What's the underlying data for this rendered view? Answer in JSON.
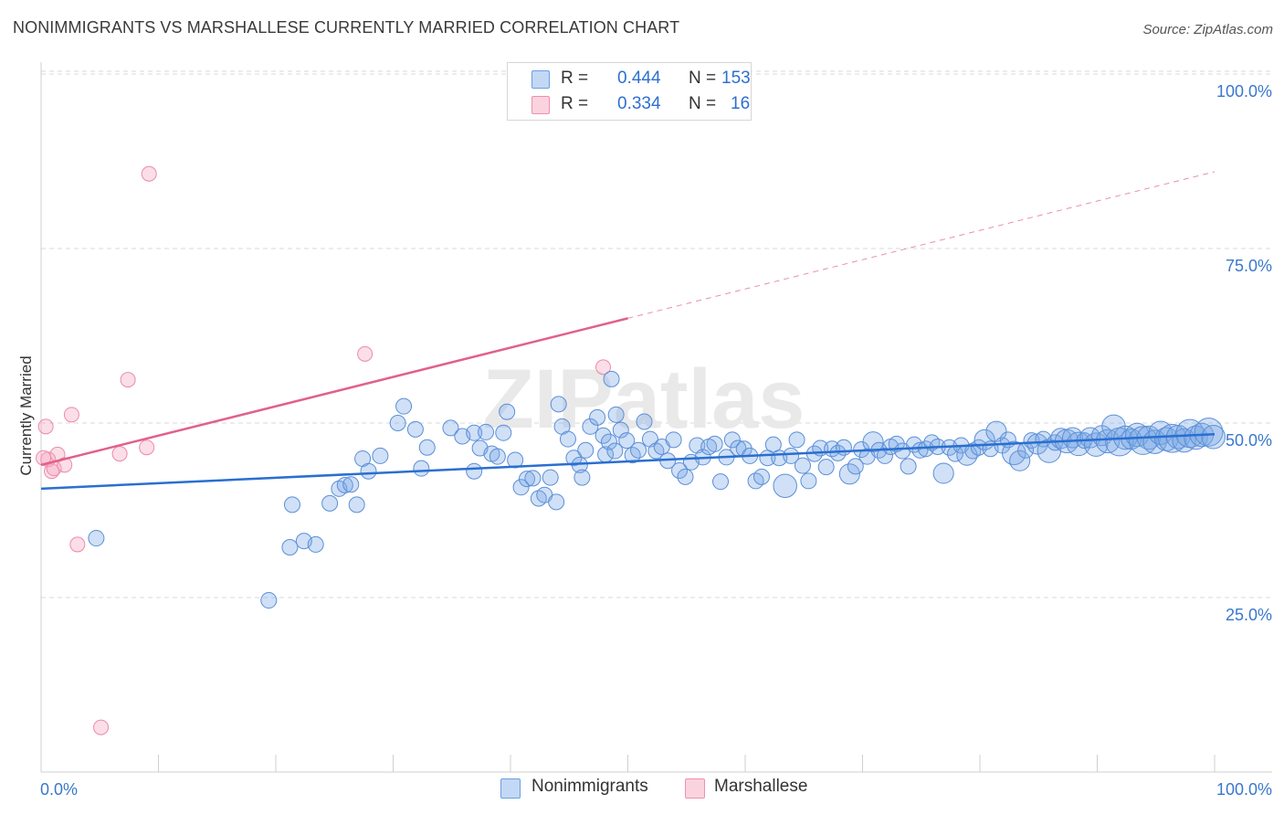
{
  "header": {
    "title": "NONIMMIGRANTS VS MARSHALLESE CURRENTLY MARRIED CORRELATION CHART",
    "source": "Source: ZipAtlas.com"
  },
  "watermark": "ZIPatlas",
  "legend": {
    "r_label": "R =",
    "n_label": "N =",
    "rows": [
      {
        "r": "0.444",
        "n": "153",
        "color": "#a8c8f0",
        "border": "#6a9fe0"
      },
      {
        "r": "0.334",
        "n": "16",
        "color": "#f8c0d0",
        "border": "#f090ae"
      }
    ]
  },
  "bottom_legend": [
    {
      "label": "Nonimmigrants",
      "color": "#a8c8f0",
      "border": "#6a9fe0"
    },
    {
      "label": "Marshallese",
      "color": "#f8c0d0",
      "border": "#f090ae"
    }
  ],
  "colors": {
    "blue_fill": "rgba(120,165,230,0.35)",
    "blue_stroke": "#5b8fd8",
    "blue_line": "#2a6fd0",
    "pink_fill": "rgba(245,160,190,0.35)",
    "pink_stroke": "#ec8aa8",
    "pink_line": "#e2608a",
    "tick_label": "#3a78cc",
    "grid": "#d8d8d8"
  },
  "chart_data": {
    "type": "scatter",
    "title": "NONIMMIGRANTS VS MARSHALLESE CURRENTLY MARRIED CORRELATION CHART",
    "xlabel": "",
    "ylabel": "Currently Married",
    "xlim": [
      0,
      100
    ],
    "ylim": [
      0,
      105
    ],
    "x_tick_labels": [
      "0.0%",
      "100.0%"
    ],
    "y_ticks": [
      25,
      50,
      75,
      100
    ],
    "y_tick_labels": [
      "25.0%",
      "50.0%",
      "75.0%",
      "100.0%"
    ],
    "grid": "dashed horizontal",
    "legend_placement": "top-center",
    "series": [
      {
        "name": "Nonimmigrants",
        "R": 0.444,
        "N": 153,
        "trend": {
          "x": [
            0,
            100
          ],
          "y": [
            40.6,
            48.4
          ]
        },
        "points": [
          [
            4.7,
            33.5,
            1
          ],
          [
            19.4,
            24.6,
            1
          ],
          [
            21.4,
            38.3,
            1
          ],
          [
            21.2,
            32.2,
            1
          ],
          [
            22.4,
            33.1,
            1
          ],
          [
            23.4,
            32.6,
            1
          ],
          [
            24.6,
            38.5,
            1
          ],
          [
            25.4,
            40.6,
            1
          ],
          [
            25.9,
            41.1,
            1
          ],
          [
            26.4,
            41.2,
            1
          ],
          [
            26.9,
            38.3,
            1
          ],
          [
            27.4,
            44.9,
            1
          ],
          [
            27.9,
            43.1,
            1
          ],
          [
            28.9,
            45.3,
            1
          ],
          [
            30.4,
            50.0,
            1
          ],
          [
            30.9,
            52.4,
            1
          ],
          [
            31.9,
            49.1,
            1
          ],
          [
            32.4,
            43.5,
            1
          ],
          [
            32.9,
            46.5,
            1
          ],
          [
            34.9,
            49.3,
            1
          ],
          [
            35.9,
            48.1,
            1
          ],
          [
            36.9,
            48.6,
            1
          ],
          [
            36.9,
            43.1,
            1
          ],
          [
            37.4,
            46.4,
            1
          ],
          [
            37.9,
            48.7,
            1
          ],
          [
            38.4,
            45.6,
            1
          ],
          [
            39.4,
            48.6,
            1
          ],
          [
            39.7,
            51.6,
            1
          ],
          [
            40.4,
            44.7,
            1
          ],
          [
            40.9,
            40.8,
            1
          ],
          [
            41.4,
            42.0,
            1
          ],
          [
            41.9,
            42.1,
            1
          ],
          [
            42.4,
            39.2,
            1
          ],
          [
            42.9,
            39.7,
            1
          ],
          [
            43.4,
            42.2,
            1
          ],
          [
            43.9,
            38.7,
            1
          ],
          [
            44.1,
            52.7,
            1
          ],
          [
            44.4,
            49.5,
            1
          ],
          [
            44.9,
            47.7,
            1
          ],
          [
            45.4,
            45.0,
            1
          ],
          [
            45.9,
            44.0,
            1
          ],
          [
            46.1,
            42.2,
            1
          ],
          [
            46.4,
            46.1,
            1
          ],
          [
            46.8,
            49.5,
            1
          ],
          [
            47.4,
            50.8,
            1
          ],
          [
            47.9,
            48.2,
            1
          ],
          [
            48.1,
            45.5,
            1
          ],
          [
            48.4,
            47.3,
            1
          ],
          [
            48.6,
            56.3,
            1
          ],
          [
            49.0,
            51.2,
            1
          ],
          [
            49.4,
            49.0,
            1
          ],
          [
            49.9,
            47.5,
            1
          ],
          [
            50.4,
            45.4,
            1
          ],
          [
            50.9,
            46.1,
            1
          ],
          [
            51.4,
            50.2,
            1
          ],
          [
            51.9,
            47.7,
            1
          ],
          [
            52.4,
            46.0,
            1
          ],
          [
            52.9,
            46.6,
            1
          ],
          [
            53.4,
            44.6,
            1
          ],
          [
            53.9,
            47.6,
            1
          ],
          [
            54.4,
            43.2,
            1
          ],
          [
            54.9,
            42.3,
            1
          ],
          [
            55.4,
            44.4,
            1
          ],
          [
            55.9,
            46.8,
            1
          ],
          [
            56.4,
            45.1,
            1
          ],
          [
            56.9,
            46.6,
            1
          ],
          [
            57.4,
            47.0,
            1
          ],
          [
            57.9,
            41.6,
            1
          ],
          [
            58.4,
            45.1,
            1
          ],
          [
            58.9,
            47.6,
            1
          ],
          [
            59.4,
            46.4,
            1
          ],
          [
            59.9,
            46.3,
            1
          ],
          [
            60.4,
            45.3,
            1
          ],
          [
            60.9,
            41.7,
            1
          ],
          [
            61.4,
            42.3,
            1
          ],
          [
            61.9,
            45.0,
            1
          ],
          [
            62.4,
            46.9,
            1
          ],
          [
            62.9,
            45.0,
            1
          ],
          [
            63.4,
            41.0,
            1.5
          ],
          [
            63.9,
            45.3,
            1
          ],
          [
            64.4,
            47.6,
            1
          ],
          [
            64.9,
            43.9,
            1
          ],
          [
            65.4,
            41.7,
            1
          ],
          [
            65.9,
            45.6,
            1
          ],
          [
            66.4,
            46.4,
            1
          ],
          [
            66.9,
            43.7,
            1
          ],
          [
            67.4,
            46.3,
            1
          ],
          [
            67.9,
            45.7,
            1
          ],
          [
            68.4,
            46.5,
            1
          ],
          [
            68.9,
            42.7,
            1.3
          ],
          [
            69.4,
            43.8,
            1
          ],
          [
            69.9,
            46.2,
            1
          ],
          [
            70.4,
            45.2,
            1
          ],
          [
            70.9,
            47.3,
            1.3
          ],
          [
            71.4,
            46.1,
            1
          ],
          [
            71.9,
            45.3,
            1
          ],
          [
            72.4,
            46.6,
            1
          ],
          [
            72.9,
            47.0,
            1
          ],
          [
            73.4,
            46.0,
            1
          ],
          [
            73.9,
            43.8,
            1
          ],
          [
            74.4,
            46.9,
            1
          ],
          [
            74.9,
            46.1,
            1
          ],
          [
            75.4,
            46.3,
            1
          ],
          [
            75.9,
            47.2,
            1
          ],
          [
            76.4,
            46.6,
            1
          ],
          [
            76.9,
            42.8,
            1.3
          ],
          [
            77.4,
            46.5,
            1
          ],
          [
            77.9,
            45.6,
            1
          ],
          [
            78.4,
            46.8,
            1
          ],
          [
            78.9,
            45.4,
            1.3
          ],
          [
            79.4,
            46.0,
            1
          ],
          [
            79.9,
            46.5,
            1
          ],
          [
            80.4,
            47.6,
            1.3
          ],
          [
            80.9,
            46.3,
            1
          ],
          [
            81.4,
            48.8,
            1.3
          ],
          [
            81.9,
            46.8,
            1
          ],
          [
            82.4,
            47.6,
            1
          ],
          [
            82.9,
            45.7,
            1.5
          ],
          [
            83.4,
            44.6,
            1.3
          ],
          [
            83.9,
            46.1,
            1
          ],
          [
            84.4,
            47.5,
            1
          ],
          [
            84.9,
            47.0,
            1.3
          ],
          [
            85.4,
            47.7,
            1
          ],
          [
            85.9,
            46.0,
            1.5
          ],
          [
            86.4,
            47.2,
            1
          ],
          [
            86.9,
            47.8,
            1.3
          ],
          [
            87.4,
            47.4,
            1.5
          ],
          [
            87.9,
            47.9,
            1.3
          ],
          [
            88.4,
            47.0,
            1.5
          ],
          [
            88.9,
            47.5,
            1
          ],
          [
            89.4,
            47.9,
            1.3
          ],
          [
            89.9,
            46.9,
            1.5
          ],
          [
            90.4,
            48.2,
            1.3
          ],
          [
            90.9,
            47.4,
            1.5
          ],
          [
            91.4,
            49.5,
            1.5
          ],
          [
            91.9,
            47.3,
            1.8
          ],
          [
            92.4,
            47.9,
            1.5
          ],
          [
            92.9,
            47.7,
            1.3
          ],
          [
            93.4,
            48.3,
            1.5
          ],
          [
            93.9,
            47.5,
            1.8
          ],
          [
            94.4,
            47.9,
            1.5
          ],
          [
            94.9,
            47.3,
            1.5
          ],
          [
            95.4,
            48.6,
            1.5
          ],
          [
            95.9,
            47.7,
            1.5
          ],
          [
            96.4,
            47.8,
            1.8
          ],
          [
            96.9,
            48.0,
            1.5
          ],
          [
            97.4,
            47.5,
            1.5
          ],
          [
            97.9,
            48.5,
            1.8
          ],
          [
            98.4,
            47.9,
            1.5
          ],
          [
            98.9,
            48.3,
            1.5
          ],
          [
            99.5,
            48.7,
            1.8
          ],
          [
            99.9,
            48.0,
            1.5
          ],
          [
            38.9,
            45.2,
            1
          ],
          [
            48.9,
            46.0,
            1
          ]
        ]
      },
      {
        "name": "Marshallese",
        "R": 0.334,
        "N": 16,
        "trend": {
          "x": [
            0,
            100
          ],
          "y": [
            44.0,
            86.0
          ]
        },
        "trend_solid_until_x": 50,
        "points": [
          [
            0.4,
            49.5
          ],
          [
            0.6,
            44.8
          ],
          [
            0.9,
            43.1
          ],
          [
            1.1,
            43.5
          ],
          [
            1.4,
            45.5
          ],
          [
            2.0,
            44.0
          ],
          [
            2.6,
            51.2
          ],
          [
            3.1,
            32.6
          ],
          [
            5.1,
            6.4
          ],
          [
            6.7,
            45.6
          ],
          [
            7.4,
            56.2
          ],
          [
            9.0,
            46.5
          ],
          [
            9.2,
            85.7
          ],
          [
            27.6,
            59.9
          ],
          [
            47.9,
            58.0
          ],
          [
            0.2,
            45.0
          ]
        ]
      }
    ]
  }
}
